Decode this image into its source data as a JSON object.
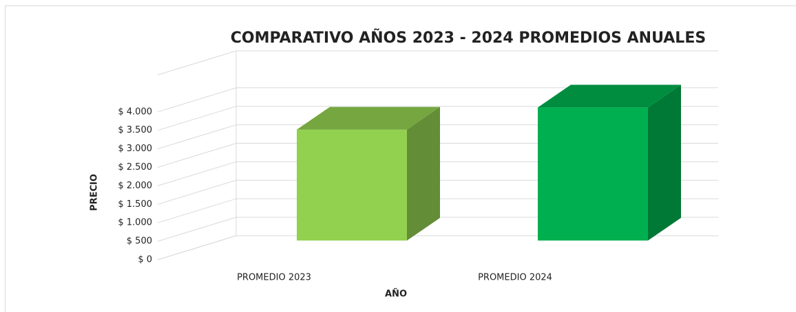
{
  "chart_data": {
    "type": "bar3d",
    "title": "COMPARATIVO AÑOS  2023 - 2024  PROMEDIOS ANUALES",
    "x_label": "AÑO",
    "y_label": "PRECIO",
    "categories": [
      "PROMEDIO 2023",
      "PROMEDIO 2024"
    ],
    "values": [
      3000,
      3600
    ],
    "colors": [
      "#92d050",
      "#00b050"
    ],
    "ylim": [
      0,
      5000
    ],
    "yticks": [
      {
        "value": 0,
        "label": "$ 0"
      },
      {
        "value": 500,
        "label": "$ 500"
      },
      {
        "value": 1000,
        "label": "$ 1.000"
      },
      {
        "value": 1500,
        "label": "$ 1.500"
      },
      {
        "value": 2000,
        "label": "$ 2.000"
      },
      {
        "value": 2500,
        "label": "$ 2.500"
      },
      {
        "value": 3000,
        "label": "$ 3.000"
      },
      {
        "value": 3500,
        "label": "$ 3.500"
      },
      {
        "value": 4000,
        "label": "$ 4.000"
      }
    ],
    "grid": true
  }
}
